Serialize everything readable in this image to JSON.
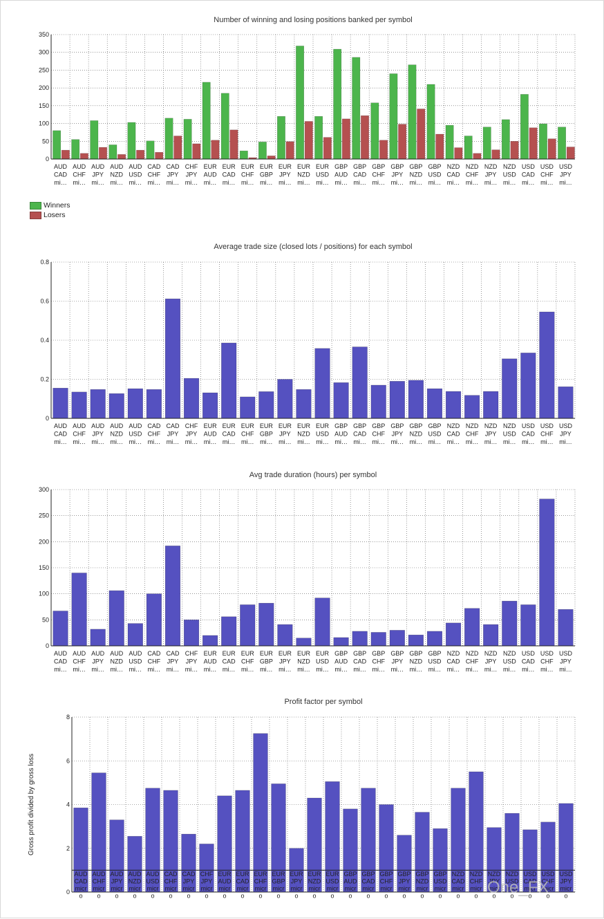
{
  "colors": {
    "winners": "#4cb54c",
    "losers": "#b55050",
    "bars": "#5551c0",
    "grid": "#555555",
    "axis": "#222222"
  },
  "legend": {
    "winners": "Winners",
    "losers": "Losers"
  },
  "watermark": "One_FX",
  "chart_data": [
    {
      "type": "bar",
      "title": "Number of winning and losing positions banked per symbol",
      "categories": [
        [
          "AUD",
          "CAD",
          "mi…"
        ],
        [
          "AUD",
          "CHF",
          "mi…"
        ],
        [
          "AUD",
          "JPY",
          "mi…"
        ],
        [
          "AUD",
          "NZD",
          "mi…"
        ],
        [
          "AUD",
          "USD",
          "mi…"
        ],
        [
          "CAD",
          "CHF",
          "mi…"
        ],
        [
          "CAD",
          "JPY",
          "mi…"
        ],
        [
          "CHF",
          "JPY",
          "mi…"
        ],
        [
          "EUR",
          "AUD",
          "mi…"
        ],
        [
          "EUR",
          "CAD",
          "mi…"
        ],
        [
          "EUR",
          "CHF",
          "mi…"
        ],
        [
          "EUR",
          "GBP",
          "mi…"
        ],
        [
          "EUR",
          "JPY",
          "mi…"
        ],
        [
          "EUR",
          "NZD",
          "mi…"
        ],
        [
          "EUR",
          "USD",
          "mi…"
        ],
        [
          "GBP",
          "AUD",
          "mi…"
        ],
        [
          "GBP",
          "CAD",
          "mi…"
        ],
        [
          "GBP",
          "CHF",
          "mi…"
        ],
        [
          "GBP",
          "JPY",
          "mi…"
        ],
        [
          "GBP",
          "NZD",
          "mi…"
        ],
        [
          "GBP",
          "USD",
          "mi…"
        ],
        [
          "NZD",
          "CAD",
          "mi…"
        ],
        [
          "NZD",
          "CHF",
          "mi…"
        ],
        [
          "NZD",
          "JPY",
          "mi…"
        ],
        [
          "NZD",
          "USD",
          "mi…"
        ],
        [
          "USD",
          "CAD",
          "mi…"
        ],
        [
          "USD",
          "CHF",
          "mi…"
        ],
        [
          "USD",
          "JPY",
          "mi…"
        ]
      ],
      "series": [
        {
          "name": "Winners",
          "values": [
            80,
            55,
            108,
            40,
            103,
            51,
            115,
            112,
            216,
            185,
            23,
            48,
            120,
            318,
            120,
            309,
            286,
            158,
            240,
            265,
            210,
            95,
            65,
            90,
            111,
            182,
            99,
            90
          ]
        },
        {
          "name": "Losers",
          "values": [
            25,
            16,
            33,
            13,
            25,
            19,
            65,
            43,
            53,
            82,
            4,
            9,
            49,
            106,
            61,
            113,
            122,
            53,
            98,
            141,
            70,
            32,
            16,
            26,
            50,
            88,
            57,
            34
          ]
        }
      ],
      "ylim": [
        0,
        350
      ],
      "yticks": [
        0,
        50,
        100,
        150,
        200,
        250,
        300,
        350
      ],
      "grid": true,
      "legend_position": "bottom-left"
    },
    {
      "type": "bar",
      "title": "Average trade size (closed lots / positions) for each symbol",
      "categories": [
        [
          "AUD",
          "CAD",
          "mi…"
        ],
        [
          "AUD",
          "CHF",
          "mi…"
        ],
        [
          "AUD",
          "JPY",
          "mi…"
        ],
        [
          "AUD",
          "NZD",
          "mi…"
        ],
        [
          "AUD",
          "USD",
          "mi…"
        ],
        [
          "CAD",
          "CHF",
          "mi…"
        ],
        [
          "CAD",
          "JPY",
          "mi…"
        ],
        [
          "CHF",
          "JPY",
          "mi…"
        ],
        [
          "EUR",
          "AUD",
          "mi…"
        ],
        [
          "EUR",
          "CAD",
          "mi…"
        ],
        [
          "EUR",
          "CHF",
          "mi…"
        ],
        [
          "EUR",
          "GBP",
          "mi…"
        ],
        [
          "EUR",
          "JPY",
          "mi…"
        ],
        [
          "EUR",
          "NZD",
          "mi…"
        ],
        [
          "EUR",
          "USD",
          "mi…"
        ],
        [
          "GBP",
          "AUD",
          "mi…"
        ],
        [
          "GBP",
          "CAD",
          "mi…"
        ],
        [
          "GBP",
          "CHF",
          "mi…"
        ],
        [
          "GBP",
          "JPY",
          "mi…"
        ],
        [
          "GBP",
          "NZD",
          "mi…"
        ],
        [
          "GBP",
          "USD",
          "mi…"
        ],
        [
          "NZD",
          "CAD",
          "mi…"
        ],
        [
          "NZD",
          "CHF",
          "mi…"
        ],
        [
          "NZD",
          "JPY",
          "mi…"
        ],
        [
          "NZD",
          "USD",
          "mi…"
        ],
        [
          "USD",
          "CAD",
          "mi…"
        ],
        [
          "USD",
          "CHF",
          "mi…"
        ],
        [
          "USD",
          "JPY",
          "mi…"
        ]
      ],
      "values": [
        0.155,
        0.135,
        0.148,
        0.127,
        0.152,
        0.148,
        0.612,
        0.205,
        0.131,
        0.386,
        0.11,
        0.137,
        0.2,
        0.148,
        0.358,
        0.183,
        0.366,
        0.17,
        0.19,
        0.195,
        0.152,
        0.138,
        0.118,
        0.138,
        0.305,
        0.335,
        0.545,
        0.162
      ],
      "ylim": [
        0,
        0.8
      ],
      "yticks": [
        "0",
        "0.2",
        "0.4",
        "0.6",
        "0.8"
      ],
      "grid": true
    },
    {
      "type": "bar",
      "title": "Avg trade duration (hours) per symbol",
      "categories": [
        [
          "AUD",
          "CAD",
          "mi…"
        ],
        [
          "AUD",
          "CHF",
          "mi…"
        ],
        [
          "AUD",
          "JPY",
          "mi…"
        ],
        [
          "AUD",
          "NZD",
          "mi…"
        ],
        [
          "AUD",
          "USD",
          "mi…"
        ],
        [
          "CAD",
          "CHF",
          "mi…"
        ],
        [
          "CAD",
          "JPY",
          "mi…"
        ],
        [
          "CHF",
          "JPY",
          "mi…"
        ],
        [
          "EUR",
          "AUD",
          "mi…"
        ],
        [
          "EUR",
          "CAD",
          "mi…"
        ],
        [
          "EUR",
          "CHF",
          "mi…"
        ],
        [
          "EUR",
          "GBP",
          "mi…"
        ],
        [
          "EUR",
          "JPY",
          "mi…"
        ],
        [
          "EUR",
          "NZD",
          "mi…"
        ],
        [
          "EUR",
          "USD",
          "mi…"
        ],
        [
          "GBP",
          "AUD",
          "mi…"
        ],
        [
          "GBP",
          "CAD",
          "mi…"
        ],
        [
          "GBP",
          "CHF",
          "mi…"
        ],
        [
          "GBP",
          "JPY",
          "mi…"
        ],
        [
          "GBP",
          "NZD",
          "mi…"
        ],
        [
          "GBP",
          "USD",
          "mi…"
        ],
        [
          "NZD",
          "CAD",
          "mi…"
        ],
        [
          "NZD",
          "CHF",
          "mi…"
        ],
        [
          "NZD",
          "JPY",
          "mi…"
        ],
        [
          "NZD",
          "USD",
          "mi…"
        ],
        [
          "USD",
          "CAD",
          "mi…"
        ],
        [
          "USD",
          "CHF",
          "mi…"
        ],
        [
          "USD",
          "JPY",
          "mi…"
        ]
      ],
      "values": [
        67,
        140,
        32,
        106,
        43,
        100,
        192,
        50,
        20,
        56,
        79,
        82,
        41,
        15,
        92,
        16,
        28,
        26,
        30,
        21,
        28,
        44,
        72,
        41,
        86,
        79,
        282,
        70
      ],
      "ylim": [
        0,
        300
      ],
      "yticks": [
        0,
        50,
        100,
        150,
        200,
        250,
        300
      ],
      "grid": true
    },
    {
      "type": "bar",
      "title": "Profit factor per symbol",
      "ylabel": "Gross profit divided by gross loss",
      "categories": [
        [
          "AUD",
          "CAD",
          "micr",
          "o"
        ],
        [
          "AUD",
          "CHF",
          "micr",
          "o"
        ],
        [
          "AUD",
          "JPY",
          "micr",
          "o"
        ],
        [
          "AUD",
          "NZD",
          "micr",
          "o"
        ],
        [
          "AUD",
          "USD",
          "micr",
          "o"
        ],
        [
          "CAD",
          "CHF",
          "micr",
          "o"
        ],
        [
          "CAD",
          "JPY",
          "micr",
          "o"
        ],
        [
          "CHF",
          "JPY",
          "micr",
          "o"
        ],
        [
          "EUR",
          "AUD",
          "micr",
          "o"
        ],
        [
          "EUR",
          "CAD",
          "micr",
          "o"
        ],
        [
          "EUR",
          "CHF",
          "micr",
          "o"
        ],
        [
          "EUR",
          "GBP",
          "micr",
          "o"
        ],
        [
          "EUR",
          "JPY",
          "micr",
          "o"
        ],
        [
          "EUR",
          "NZD",
          "micr",
          "o"
        ],
        [
          "EUR",
          "USD",
          "micr",
          "o"
        ],
        [
          "GBP",
          "AUD",
          "micr",
          "o"
        ],
        [
          "GBP",
          "CAD",
          "micr",
          "o"
        ],
        [
          "GBP",
          "CHF",
          "micr",
          "o"
        ],
        [
          "GBP",
          "JPY",
          "micr",
          "o"
        ],
        [
          "GBP",
          "NZD",
          "micr",
          "o"
        ],
        [
          "GBP",
          "USD",
          "micr",
          "o"
        ],
        [
          "NZD",
          "CAD",
          "micr",
          "o"
        ],
        [
          "NZD",
          "CHF",
          "micr",
          "o"
        ],
        [
          "NZD",
          "JPY",
          "micr",
          "o"
        ],
        [
          "NZD",
          "USD",
          "micr",
          "o"
        ],
        [
          "USD",
          "CAD",
          "micr",
          "o"
        ],
        [
          "USD",
          "CHF",
          "micr",
          "o"
        ],
        [
          "USD",
          "JPY",
          "micr",
          "o"
        ]
      ],
      "values": [
        3.85,
        5.45,
        3.3,
        2.55,
        4.75,
        4.65,
        2.65,
        2.2,
        4.4,
        4.65,
        7.25,
        4.95,
        2.0,
        4.3,
        5.05,
        3.8,
        4.75,
        4.0,
        2.6,
        3.65,
        2.9,
        4.75,
        5.5,
        2.95,
        3.6,
        2.85,
        3.2,
        4.05
      ],
      "ylim": [
        0,
        8
      ],
      "yticks": [
        0,
        2,
        4,
        6,
        8
      ],
      "reference_line": 1,
      "grid": true
    }
  ]
}
